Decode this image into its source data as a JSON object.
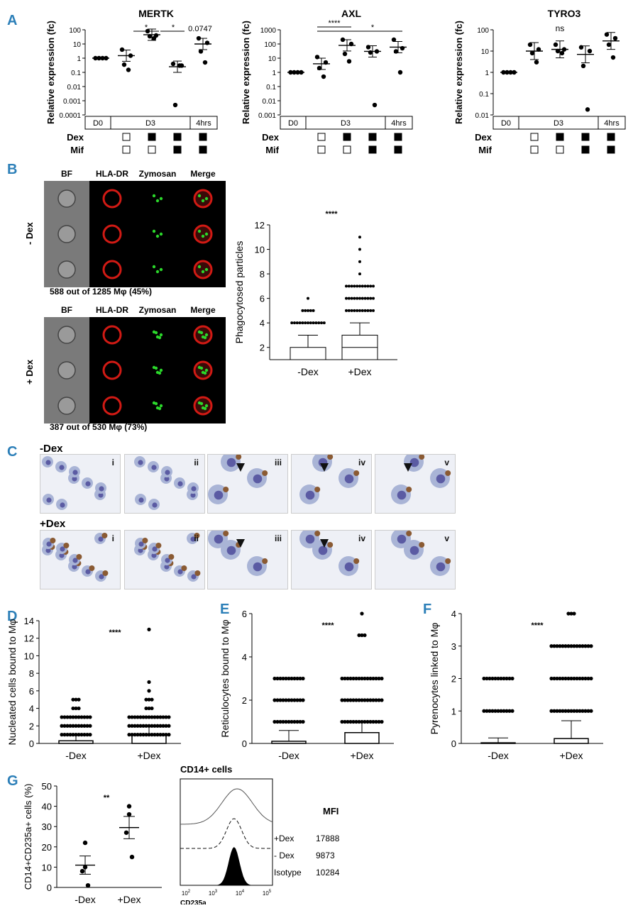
{
  "panels": {
    "A": "A",
    "B": "B",
    "C": "C",
    "D": "D",
    "E": "E",
    "F": "F",
    "G": "G"
  },
  "panel_a": {
    "ylabel": "Relative expression (fc)",
    "groups": [
      "D0",
      "D3",
      "4hrs"
    ],
    "dex_label": "Dex",
    "mif_label": "Mif",
    "dex_states": [
      false,
      false,
      true,
      true,
      true
    ],
    "mif_states": [
      false,
      false,
      false,
      true,
      true
    ],
    "charts": [
      {
        "title": "MERTK",
        "ticks": [
          "100",
          "10",
          "1",
          "0.1",
          "0.01",
          "0.001",
          "0.0001"
        ],
        "annotations": [
          "*",
          "*",
          "0.0747"
        ]
      },
      {
        "title": "AXL",
        "ticks": [
          "1000",
          "100",
          "10",
          "1",
          "0.1",
          "0.01",
          "0.001"
        ],
        "annotations": [
          "****",
          "*"
        ]
      },
      {
        "title": "TYRO3",
        "ticks": [
          "100",
          "10",
          "1",
          "0.1",
          "0.01"
        ],
        "annotations": [
          "ns"
        ]
      }
    ]
  },
  "panel_b": {
    "headers": [
      "BF",
      "HLA-DR",
      "Zymosan",
      "Merge"
    ],
    "row_labels": [
      "- Dex",
      "+ Dex"
    ],
    "captions": [
      "588 out of 1285 Mφ (45%)",
      "387 out of 530 Mφ (73%)"
    ],
    "box_ylabel": "Phagocytosed particles",
    "box_significance": "****",
    "box_yticks": [
      "2",
      "4",
      "6",
      "8",
      "10",
      "12"
    ],
    "box_categories": [
      "-Dex",
      "+Dex"
    ]
  },
  "panel_c": {
    "row_labels": [
      "-Dex",
      "+Dex"
    ],
    "image_labels": [
      "i",
      "ii",
      "iii",
      "iv",
      "v"
    ]
  },
  "panel_def": {
    "charts": [
      {
        "ylabel": "Nucleated cells bound to Mφ",
        "sig": "****",
        "ticks": [
          "0",
          "2",
          "4",
          "6",
          "8",
          "10",
          "12",
          "14"
        ],
        "categories": [
          "-Dex",
          "+Dex"
        ]
      },
      {
        "ylabel": "Reticulocytes bound to Mφ",
        "sig": "****",
        "ticks": [
          "0",
          "2",
          "4",
          "6"
        ],
        "categories": [
          "-Dex",
          "+Dex"
        ]
      },
      {
        "ylabel": "Pyrenocytes linked to Mφ",
        "sig": "****",
        "ticks": [
          "0",
          "1",
          "2",
          "3",
          "4"
        ],
        "categories": [
          "-Dex",
          "+Dex"
        ]
      }
    ]
  },
  "panel_g": {
    "ylabel": "CD14+CD235a+ cells (%)",
    "sig": "**",
    "ticks": [
      "0",
      "10",
      "20",
      "30",
      "40",
      "50"
    ],
    "categories": [
      "-Dex",
      "+Dex"
    ],
    "hist_title": "CD14+ cells",
    "hist_xlabel": "CD235a",
    "mfi_header": "MFI",
    "mfi_rows": [
      {
        "label": "+Dex",
        "value": "17888"
      },
      {
        "label": "- Dex",
        "value": "9873"
      },
      {
        "label": "Isotype",
        "value": "10284"
      }
    ]
  },
  "chart_data": [
    {
      "type": "scatter",
      "title": "MERTK",
      "ylabel": "Relative expression (fc)",
      "yscale": "log",
      "ylim": [
        0.0001,
        100
      ],
      "categories": [
        "D0",
        "D3 -Dex -Mif",
        "D3 +Dex -Mif",
        "D3 +Dex +Mif",
        "4hrs +Dex +Mif"
      ],
      "points": [
        [
          1,
          1,
          1,
          1
        ],
        [
          4,
          1.5,
          0.35,
          0.15
        ],
        [
          80,
          40,
          35,
          25
        ],
        [
          0.4,
          0.3,
          0.0005,
          0.3
        ],
        [
          25,
          12,
          3,
          0.5
        ]
      ],
      "means": [
        1,
        1.5,
        45,
        0.25,
        10
      ]
    },
    {
      "type": "scatter",
      "title": "AXL",
      "ylabel": "Relative expression (fc)",
      "yscale": "log",
      "ylim": [
        0.001,
        1000
      ],
      "categories": [
        "D0",
        "D3 -Dex -Mif",
        "D3 +Dex -Mif",
        "D3 +Dex +Mif",
        "4hrs +Dex +Mif"
      ],
      "points": [
        [
          1,
          1,
          1,
          1
        ],
        [
          12,
          5,
          2,
          0.5
        ],
        [
          200,
          100,
          20,
          6
        ],
        [
          60,
          30,
          25,
          0.005
        ],
        [
          200,
          50,
          30,
          1
        ]
      ],
      "means": [
        1,
        4,
        80,
        30,
        60
      ]
    },
    {
      "type": "scatter",
      "title": "TYRO3",
      "ylabel": "Relative expression (fc)",
      "yscale": "log",
      "ylim": [
        0.01,
        100
      ],
      "categories": [
        "D0",
        "D3 -Dex -Mif",
        "D3 +Dex -Mif",
        "D3 +Dex +Mif",
        "4hrs +Dex +Mif"
      ],
      "points": [
        [
          1,
          1,
          1,
          1
        ],
        [
          20,
          12,
          8,
          3
        ],
        [
          20,
          12,
          10,
          8
        ],
        [
          15,
          10,
          2,
          0.018
        ],
        [
          60,
          40,
          20,
          5
        ]
      ],
      "means": [
        1,
        10,
        12,
        7,
        30
      ]
    },
    {
      "type": "box",
      "ylabel": "Phagocytosed particles",
      "categories": [
        "-Dex",
        "+Dex"
      ],
      "ylim": [
        1,
        12
      ],
      "boxes": [
        {
          "whisker_low": 1,
          "q1": 1,
          "median": 1,
          "q3": 2,
          "whisker_high": 3,
          "outliers": [
            4,
            5,
            6
          ]
        },
        {
          "whisker_low": 1,
          "q1": 1,
          "median": 2,
          "q3": 3,
          "whisker_high": 4,
          "outliers": [
            5,
            6,
            7,
            8,
            9,
            10,
            11
          ]
        }
      ]
    },
    {
      "type": "scatter",
      "ylabel": "Nucleated cells bound to Mφ",
      "categories": [
        "-Dex",
        "+Dex"
      ],
      "ylim": [
        0,
        14
      ],
      "means": [
        0.3,
        1.0
      ],
      "errors": [
        0.7,
        1.0
      ],
      "points": [
        [
          0,
          1,
          2,
          3,
          4,
          5
        ],
        [
          0,
          1,
          2,
          3,
          4,
          5,
          6,
          7,
          13
        ]
      ]
    },
    {
      "type": "scatter",
      "ylabel": "Reticulocytes bound to Mφ",
      "categories": [
        "-Dex",
        "+Dex"
      ],
      "ylim": [
        0,
        6
      ],
      "means": [
        0.1,
        0.5
      ],
      "errors": [
        0.5,
        0.5
      ],
      "points": [
        [
          0,
          1,
          2,
          3
        ],
        [
          0,
          1,
          2,
          3,
          5,
          6
        ]
      ]
    },
    {
      "type": "scatter",
      "ylabel": "Pyrenocytes linked to Mφ",
      "categories": [
        "-Dex",
        "+Dex"
      ],
      "ylim": [
        0,
        4
      ],
      "means": [
        0.02,
        0.15
      ],
      "errors": [
        0.15,
        0.55
      ],
      "points": [
        [
          0,
          1,
          2
        ],
        [
          0,
          1,
          2,
          3,
          4
        ]
      ]
    },
    {
      "type": "scatter",
      "ylabel": "CD14+CD235a+ cells (%)",
      "categories": [
        "-Dex",
        "+Dex"
      ],
      "ylim": [
        0,
        50
      ],
      "means": [
        11,
        29.5
      ],
      "errors": [
        4.5,
        5.5
      ],
      "points": [
        [
          22,
          10,
          8,
          1
        ],
        [
          40,
          36,
          27,
          15
        ]
      ]
    }
  ],
  "colors": {
    "accent": "#2c7fb8"
  }
}
